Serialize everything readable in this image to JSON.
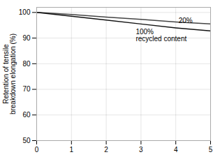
{
  "chart_data": {
    "type": "line",
    "ylabel": "Retention of tensile\nbreakdown elongation (%)",
    "x": [
      0,
      1,
      2,
      3,
      4,
      5
    ],
    "series": [
      {
        "color": "#444444",
        "values": [
          100,
          99.2,
          98.2,
          97.3,
          96.3,
          95.5
        ]
      },
      {
        "color": "#111111",
        "values": [
          100,
          98.5,
          97.0,
          95.5,
          94.0,
          92.8
        ]
      }
    ],
    "xlim": [
      0,
      5
    ],
    "ylim": [
      50,
      102
    ],
    "xticks": [
      0,
      1,
      2,
      3,
      4,
      5
    ],
    "yticks": [
      50,
      60,
      70,
      80,
      90,
      100
    ],
    "grid": true,
    "annotations": [
      {
        "x": 4.08,
        "y": 96.8,
        "text": "20%"
      },
      {
        "x": 2.85,
        "y": 93.5,
        "text": "100%\nrecycled content"
      }
    ]
  }
}
